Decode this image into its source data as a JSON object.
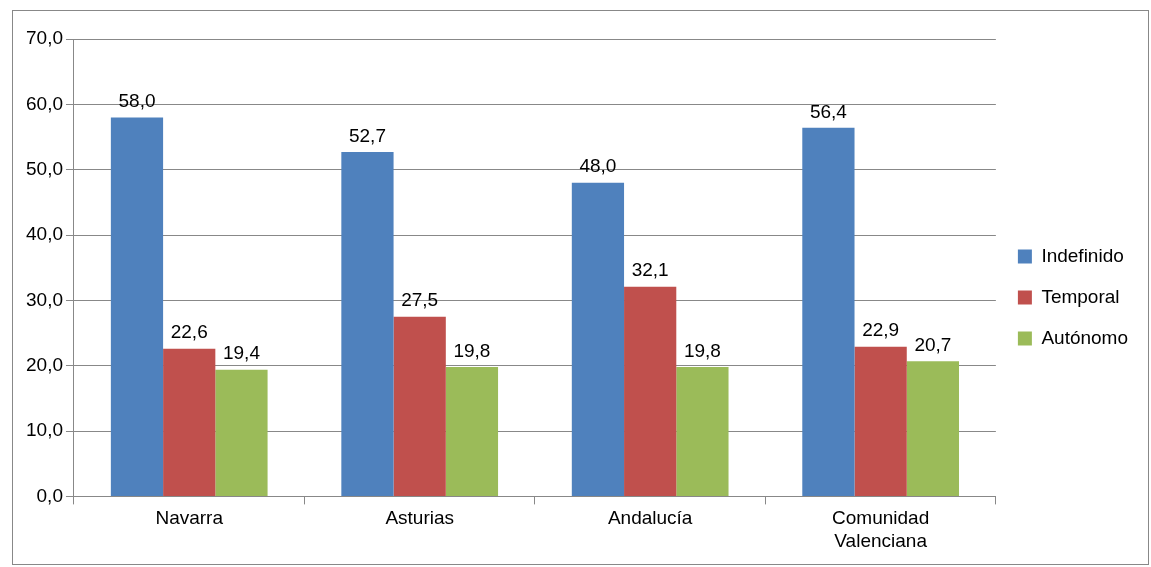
{
  "chart_data": {
    "type": "bar",
    "categories": [
      "Navarra",
      "Asturias",
      "Andalucía",
      "Comunidad Valenciana"
    ],
    "series": [
      {
        "name": "Indefinido",
        "color": "#4f81bd",
        "values": [
          58.0,
          52.7,
          48.0,
          56.4
        ],
        "value_labels": [
          "58,0",
          "52,7",
          "48,0",
          "56,4"
        ]
      },
      {
        "name": "Temporal",
        "color": "#c0504d",
        "values": [
          22.6,
          27.5,
          32.1,
          22.9
        ],
        "value_labels": [
          "22,6",
          "27,5",
          "32,1",
          "22,9"
        ]
      },
      {
        "name": "Autónomo",
        "color": "#9bbb59",
        "values": [
          19.4,
          19.8,
          19.8,
          20.7
        ],
        "value_labels": [
          "19,4",
          "19,8",
          "19,8",
          "20,7"
        ]
      }
    ],
    "ylim": [
      0,
      70
    ],
    "yticks": [
      {
        "value": 0,
        "label": "0,0"
      },
      {
        "value": 10,
        "label": "10,0"
      },
      {
        "value": 20,
        "label": "20,0"
      },
      {
        "value": 30,
        "label": "30,0"
      },
      {
        "value": 40,
        "label": "40,0"
      },
      {
        "value": 50,
        "label": "50,0"
      },
      {
        "value": 60,
        "label": "60,0"
      },
      {
        "value": 70,
        "label": "70,0"
      }
    ],
    "grid": "y",
    "legend": "right"
  }
}
